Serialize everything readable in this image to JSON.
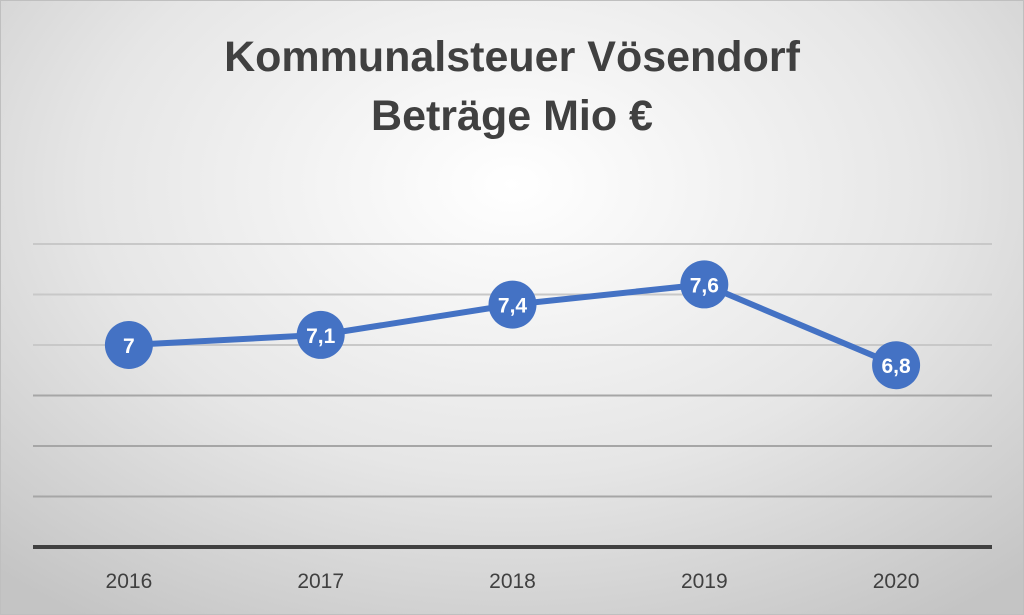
{
  "chart_data": {
    "type": "line",
    "title": [
      "Kommunalsteuer Vösendorf",
      "Beträge Mio €"
    ],
    "categories": [
      "2016",
      "2017",
      "2018",
      "2019",
      "2020"
    ],
    "series": [
      {
        "name": "Kommunalsteuer",
        "values": [
          7,
          7.1,
          7.4,
          7.6,
          6.8
        ]
      }
    ],
    "data_labels": [
      "7",
      "7,1",
      "7,4",
      "7,6",
      "6,8"
    ],
    "xlabel": "",
    "ylabel": "",
    "ylim": [
      5,
      8
    ],
    "ystep": 0.5,
    "grid": true,
    "legend": "none",
    "color": "#4472C4"
  }
}
